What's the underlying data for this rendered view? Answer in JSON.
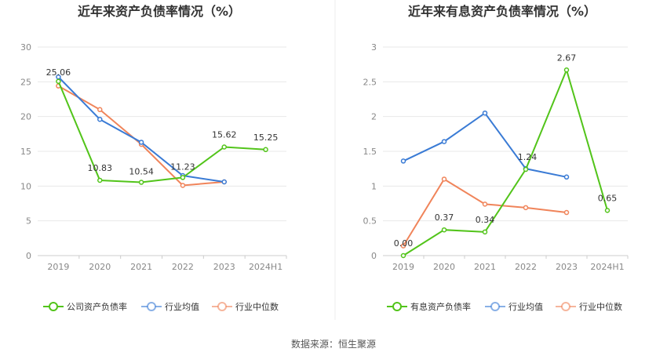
{
  "footer": {
    "source": "数据来源：恒生聚源"
  },
  "chart_data": [
    {
      "type": "line",
      "title": "近年来资产负债率情况（%）",
      "categories": [
        "2019",
        "2020",
        "2021",
        "2022",
        "2023",
        "2024H1"
      ],
      "ylim": [
        0,
        30
      ],
      "yticks": [
        "0",
        "5",
        "10",
        "15",
        "20",
        "25",
        "30"
      ],
      "grid": true,
      "legend_position": "bottom",
      "series": [
        {
          "name": "公司资产负债率",
          "color": "#52c41a",
          "values": [
            25.06,
            10.83,
            10.54,
            11.23,
            15.62,
            15.25
          ],
          "labels": [
            "25.06",
            "10.83",
            "10.54",
            "11.23",
            "15.62",
            "15.25"
          ]
        },
        {
          "name": "行业均值",
          "color": "#3a7bd5",
          "values": [
            25.7,
            19.6,
            16.3,
            11.5,
            10.6,
            null
          ],
          "labels": []
        },
        {
          "name": "行业中位数",
          "color": "#f0845a",
          "values": [
            24.4,
            21.0,
            16.0,
            10.1,
            10.6,
            null
          ],
          "labels": []
        }
      ]
    },
    {
      "type": "line",
      "title": "近年来有息资产负债率情况（%）",
      "categories": [
        "2019",
        "2020",
        "2021",
        "2022",
        "2023",
        "2024H1"
      ],
      "ylim": [
        0,
        3
      ],
      "yticks": [
        "0",
        "0.5",
        "1",
        "1.5",
        "2",
        "2.5",
        "3"
      ],
      "grid": true,
      "legend_position": "bottom",
      "series": [
        {
          "name": "有息资产负债率",
          "color": "#52c41a",
          "values": [
            0.0,
            0.37,
            0.34,
            1.24,
            2.67,
            0.65
          ],
          "labels": [
            "0.00",
            "0.37",
            "0.34",
            "1.24",
            "2.67",
            "0.65"
          ]
        },
        {
          "name": "行业均值",
          "color": "#3a7bd5",
          "values": [
            1.36,
            1.64,
            2.05,
            1.25,
            1.13,
            null
          ],
          "labels": []
        },
        {
          "name": "行业中位数",
          "color": "#f0845a",
          "values": [
            0.14,
            1.1,
            0.74,
            0.69,
            0.62,
            null
          ],
          "labels": []
        }
      ]
    }
  ]
}
